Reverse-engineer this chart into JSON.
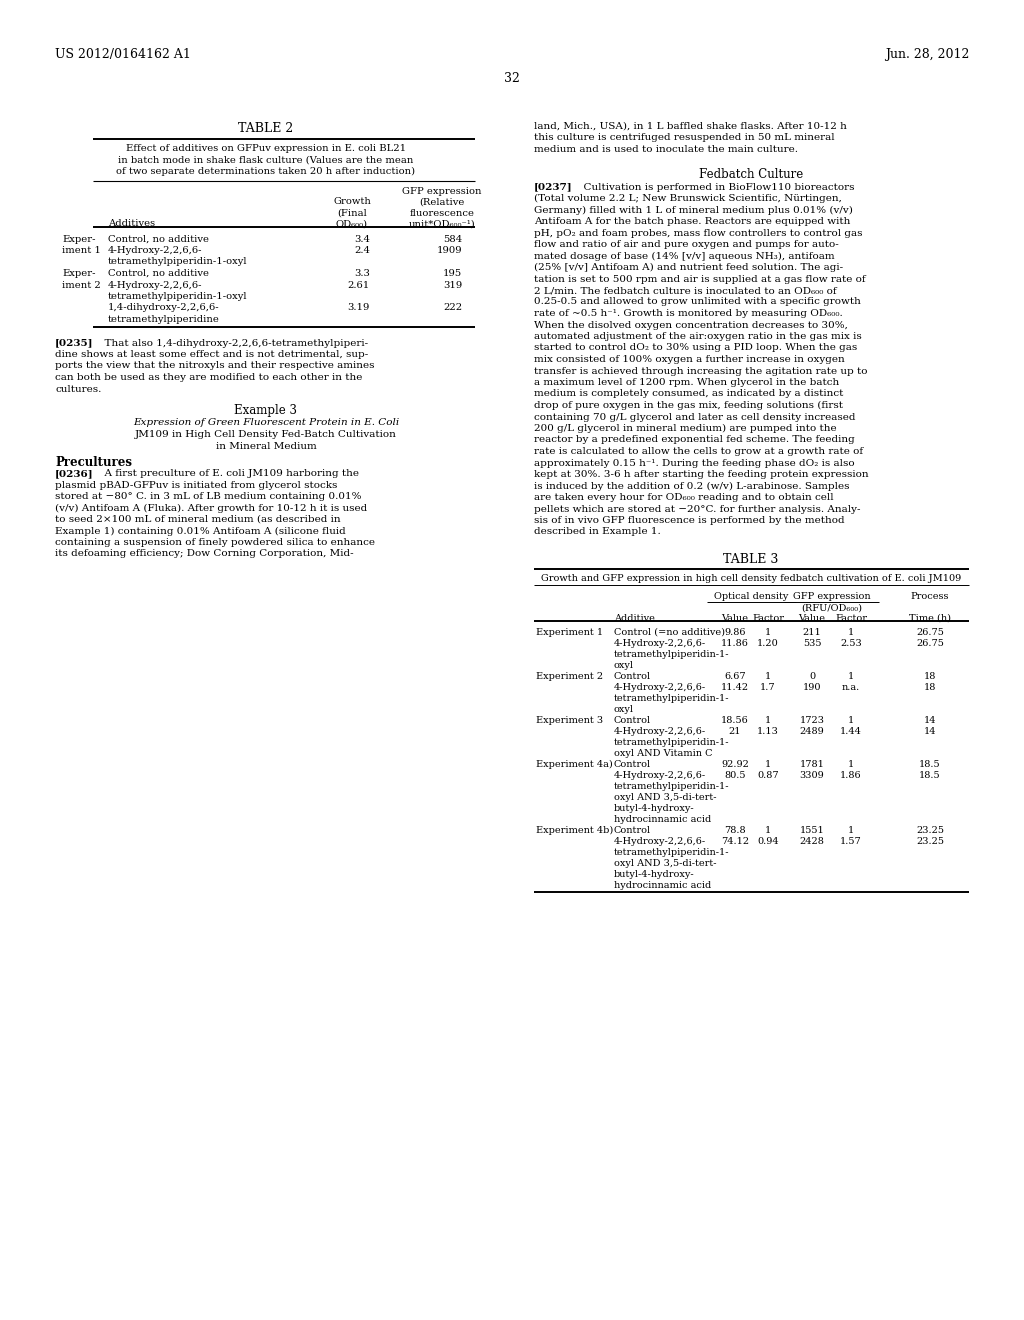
{
  "header_left": "US 2012/0164162 A1",
  "header_right": "Jun. 28, 2012",
  "page_number": "32",
  "table2_caption_lines": [
    "Effect of additives on GFPuv expression in E. coli BL21",
    "in batch mode in shake flask culture (Values are the mean",
    "of two separate determinations taken 20 h after induction)"
  ],
  "t2_rows": [
    [
      "Exper-",
      "Control, no additive",
      "3.4",
      "584"
    ],
    [
      "iment 1",
      "4-Hydroxy-2,2,6,6-",
      "2.4",
      "1909"
    ],
    [
      "",
      "tetramethylpiperidin-1-oxyl",
      "",
      ""
    ],
    [
      "Exper-",
      "Control, no additive",
      "3.3",
      "195"
    ],
    [
      "iment 2",
      "4-Hydroxy-2,2,6,6-",
      "2.61",
      "319"
    ],
    [
      "",
      "tetramethylpiperidin-1-oxyl",
      "",
      ""
    ],
    [
      "",
      "1,4-dihydroxy-2,2,6,6-",
      "3.19",
      "222"
    ],
    [
      "",
      "tetramethylpiperidine",
      "",
      ""
    ]
  ],
  "p0235_lines": [
    "[0235]   That also 1,4-dihydroxy-2,2,6,6-tetramethylpiperi-",
    "dine shows at least some effect and is not detrimental, sup-",
    "ports the view that the nitroxyls and their respective amines",
    "can both be used as they are modified to each other in the",
    "cultures."
  ],
  "ex3_sub1": "Expression of Green Fluorescent Protein in E. Coli",
  "ex3_sub2": "JM109 in High Cell Density Fed-Batch Cultivation",
  "ex3_sub3": "in Mineral Medium",
  "p0236_lines": [
    "[0236]   A first preculture of E. coli JM109 harboring the",
    "plasmid pBAD-GFPuv is initiated from glycerol stocks",
    "stored at −80° C. in 3 mL of LB medium containing 0.01%",
    "(v/v) Antifoam A (Fluka). After growth for 10-12 h it is used",
    "to seed 2×100 mL of mineral medium (as described in",
    "Example 1) containing 0.01% Antifoam A (silicone fluid",
    "containing a suspension of finely powdered silica to enhance",
    "its defoaming efficiency; Dow Corning Corporation, Mid-"
  ],
  "rc_top_lines": [
    "land, Mich., USA), in 1 L baffled shake flasks. After 10-12 h",
    "this culture is centrifuged resuspended in 50 mL mineral",
    "medium and is used to inoculate the main culture."
  ],
  "p0237_lines": [
    "[0237]   Cultivation is performed in BioFlow110 bioreactors",
    "(Total volume 2.2 L; New Brunswick Scientific, Nürtingen,",
    "Germany) filled with 1 L of mineral medium plus 0.01% (v/v)",
    "Antifoam A for the batch phase. Reactors are equipped with",
    "pH, pO₂ and foam probes, mass flow controllers to control gas",
    "flow and ratio of air and pure oxygen and pumps for auto-",
    "mated dosage of base (14% [v/v] aqueous NH₃), antifoam",
    "(25% [v/v] Antifoam A) and nutrient feed solution. The agi-",
    "tation is set to 500 rpm and air is supplied at a gas flow rate of",
    "2 L/min. The fedbatch culture is inoculated to an OD₆₀₀ of",
    "0.25-0.5 and allowed to grow unlimited with a specific growth",
    "rate of ~0.5 h⁻¹. Growth is monitored by measuring OD₆₀₀.",
    "When the disolved oxygen concentration decreases to 30%,",
    "automated adjustment of the air:oxygen ratio in the gas mix is",
    "started to control dO₂ to 30% using a PID loop. When the gas",
    "mix consisted of 100% oxygen a further increase in oxygen",
    "transfer is achieved through increasing the agitation rate up to",
    "a maximum level of 1200 rpm. When glycerol in the batch",
    "medium is completely consumed, as indicated by a distinct",
    "drop of pure oxygen in the gas mix, feeding solutions (first",
    "containing 70 g/L glycerol and later as cell density increased",
    "200 g/L glycerol in mineral medium) are pumped into the",
    "reactor by a predefined exponential fed scheme. The feeding",
    "rate is calculated to allow the cells to grow at a growth rate of",
    "approximately 0.15 h⁻¹. During the feeding phase dO₂ is also",
    "kept at 30%. 3-6 h after starting the feeding protein expression",
    "is induced by the addition of 0.2 (w/v) L-arabinose. Samples",
    "are taken every hour for OD₆₀₀ reading and to obtain cell",
    "pellets which are stored at −20°C. for further analysis. Analy-",
    "sis of in vivo GFP fluorescence is performed by the method",
    "described in Example 1."
  ],
  "t3_caption": "Growth and GFP expression in high cell density fedbatch cultivation of E. coli JM109",
  "t3_rows": [
    [
      "Experiment 1",
      "Control (=no additive)",
      "9.86",
      "1",
      "211",
      "1",
      "26.75"
    ],
    [
      "",
      "4-Hydroxy-2,2,6,6-",
      "11.86",
      "1.20",
      "535",
      "2.53",
      "26.75"
    ],
    [
      "",
      "tetramethylpiperidin-1-",
      "",
      "",
      "",
      "",
      ""
    ],
    [
      "",
      "oxyl",
      "",
      "",
      "",
      "",
      ""
    ],
    [
      "Experiment 2",
      "Control",
      "6.67",
      "1",
      "0",
      "1",
      "18"
    ],
    [
      "",
      "4-Hydroxy-2,2,6,6-",
      "11.42",
      "1.7",
      "190",
      "n.a.",
      "18"
    ],
    [
      "",
      "tetramethylpiperidin-1-",
      "",
      "",
      "",
      "",
      ""
    ],
    [
      "",
      "oxyl",
      "",
      "",
      "",
      "",
      ""
    ],
    [
      "Experiment 3",
      "Control",
      "18.56",
      "1",
      "1723",
      "1",
      "14"
    ],
    [
      "",
      "4-Hydroxy-2,2,6,6-",
      "21",
      "1.13",
      "2489",
      "1.44",
      "14"
    ],
    [
      "",
      "tetramethylpiperidin-1-",
      "",
      "",
      "",
      "",
      ""
    ],
    [
      "",
      "oxyl AND Vitamin C",
      "",
      "",
      "",
      "",
      ""
    ],
    [
      "Experiment 4a)",
      "Control",
      "92.92",
      "1",
      "1781",
      "1",
      "18.5"
    ],
    [
      "",
      "4-Hydroxy-2,2,6,6-",
      "80.5",
      "0.87",
      "3309",
      "1.86",
      "18.5"
    ],
    [
      "",
      "tetramethylpiperidin-1-",
      "",
      "",
      "",
      "",
      ""
    ],
    [
      "",
      "oxyl AND 3,5-di-tert-",
      "",
      "",
      "",
      "",
      ""
    ],
    [
      "",
      "butyl-4-hydroxy-",
      "",
      "",
      "",
      "",
      ""
    ],
    [
      "",
      "hydrocinnamic acid",
      "",
      "",
      "",
      "",
      ""
    ],
    [
      "Experiment 4b)",
      "Control",
      "78.8",
      "1",
      "1551",
      "1",
      "23.25"
    ],
    [
      "",
      "4-Hydroxy-2,2,6,6-",
      "74.12",
      "0.94",
      "2428",
      "1.57",
      "23.25"
    ],
    [
      "",
      "tetramethylpiperidin-1-",
      "",
      "",
      "",
      "",
      ""
    ],
    [
      "",
      "oxyl AND 3,5-di-tert-",
      "",
      "",
      "",
      "",
      ""
    ],
    [
      "",
      "butyl-4-hydroxy-",
      "",
      "",
      "",
      "",
      ""
    ],
    [
      "",
      "hydrocinnamic acid",
      "",
      "",
      "",
      "",
      ""
    ]
  ]
}
